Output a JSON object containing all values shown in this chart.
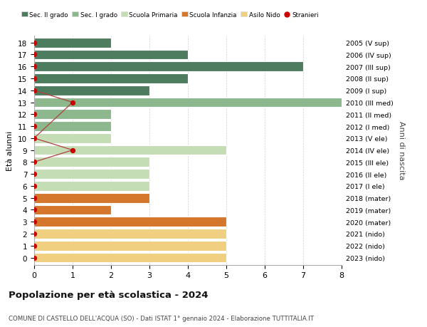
{
  "ages": [
    18,
    17,
    16,
    15,
    14,
    13,
    12,
    11,
    10,
    9,
    8,
    7,
    6,
    5,
    4,
    3,
    2,
    1,
    0
  ],
  "years": [
    "2005 (V sup)",
    "2006 (IV sup)",
    "2007 (III sup)",
    "2008 (II sup)",
    "2009 (I sup)",
    "2010 (III med)",
    "2011 (II med)",
    "2012 (I med)",
    "2013 (V ele)",
    "2014 (IV ele)",
    "2015 (III ele)",
    "2016 (II ele)",
    "2017 (I ele)",
    "2018 (mater)",
    "2019 (mater)",
    "2020 (mater)",
    "2021 (nido)",
    "2022 (nido)",
    "2023 (nido)"
  ],
  "values": [
    2,
    4,
    7,
    4,
    3,
    8,
    2,
    2,
    2,
    5,
    3,
    3,
    3,
    3,
    2,
    5,
    5,
    5,
    5
  ],
  "colors": [
    "#4e7c5f",
    "#4e7c5f",
    "#4e7c5f",
    "#4e7c5f",
    "#4e7c5f",
    "#8db88d",
    "#8db88d",
    "#8db88d",
    "#c5ddb5",
    "#c5ddb5",
    "#c5ddb5",
    "#c5ddb5",
    "#c5ddb5",
    "#d4762c",
    "#d4762c",
    "#d4762c",
    "#f0d080",
    "#f0d080",
    "#f0d080"
  ],
  "stranieri_line_ages": [
    14,
    13,
    10,
    9,
    8
  ],
  "stranieri_line_vals": [
    0,
    1,
    0,
    1,
    0
  ],
  "stranieri_dot_ages": [
    18,
    17,
    16,
    15,
    14,
    13,
    12,
    11,
    10,
    9,
    8,
    7,
    6,
    5,
    4,
    3,
    2,
    1,
    0
  ],
  "stranieri_dot_vals": [
    0,
    0,
    0,
    0,
    0,
    1,
    0,
    0,
    0,
    1,
    0,
    0,
    0,
    0,
    0,
    0,
    0,
    0,
    0
  ],
  "legend_labels": [
    "Sec. II grado",
    "Sec. I grado",
    "Scuola Primaria",
    "Scuola Infanzia",
    "Asilo Nido",
    "Stranieri"
  ],
  "legend_colors": [
    "#4e7c5f",
    "#8db88d",
    "#c5ddb5",
    "#d4762c",
    "#f0d080",
    "#cc0000"
  ],
  "ylabel_left": "Età alunni",
  "ylabel_right": "Anni di nascita",
  "title": "Popolazione per età scolastica - 2024",
  "subtitle": "COMUNE DI CASTELLO DELL'ACQUA (SO) - Dati ISTAT 1° gennaio 2024 - Elaborazione TUTTITALIA.IT",
  "xlim": [
    0,
    8
  ],
  "bg_color": "#ffffff",
  "grid_color": "#d0d0d0",
  "bar_edge_color": "#ffffff",
  "bar_height": 0.82
}
